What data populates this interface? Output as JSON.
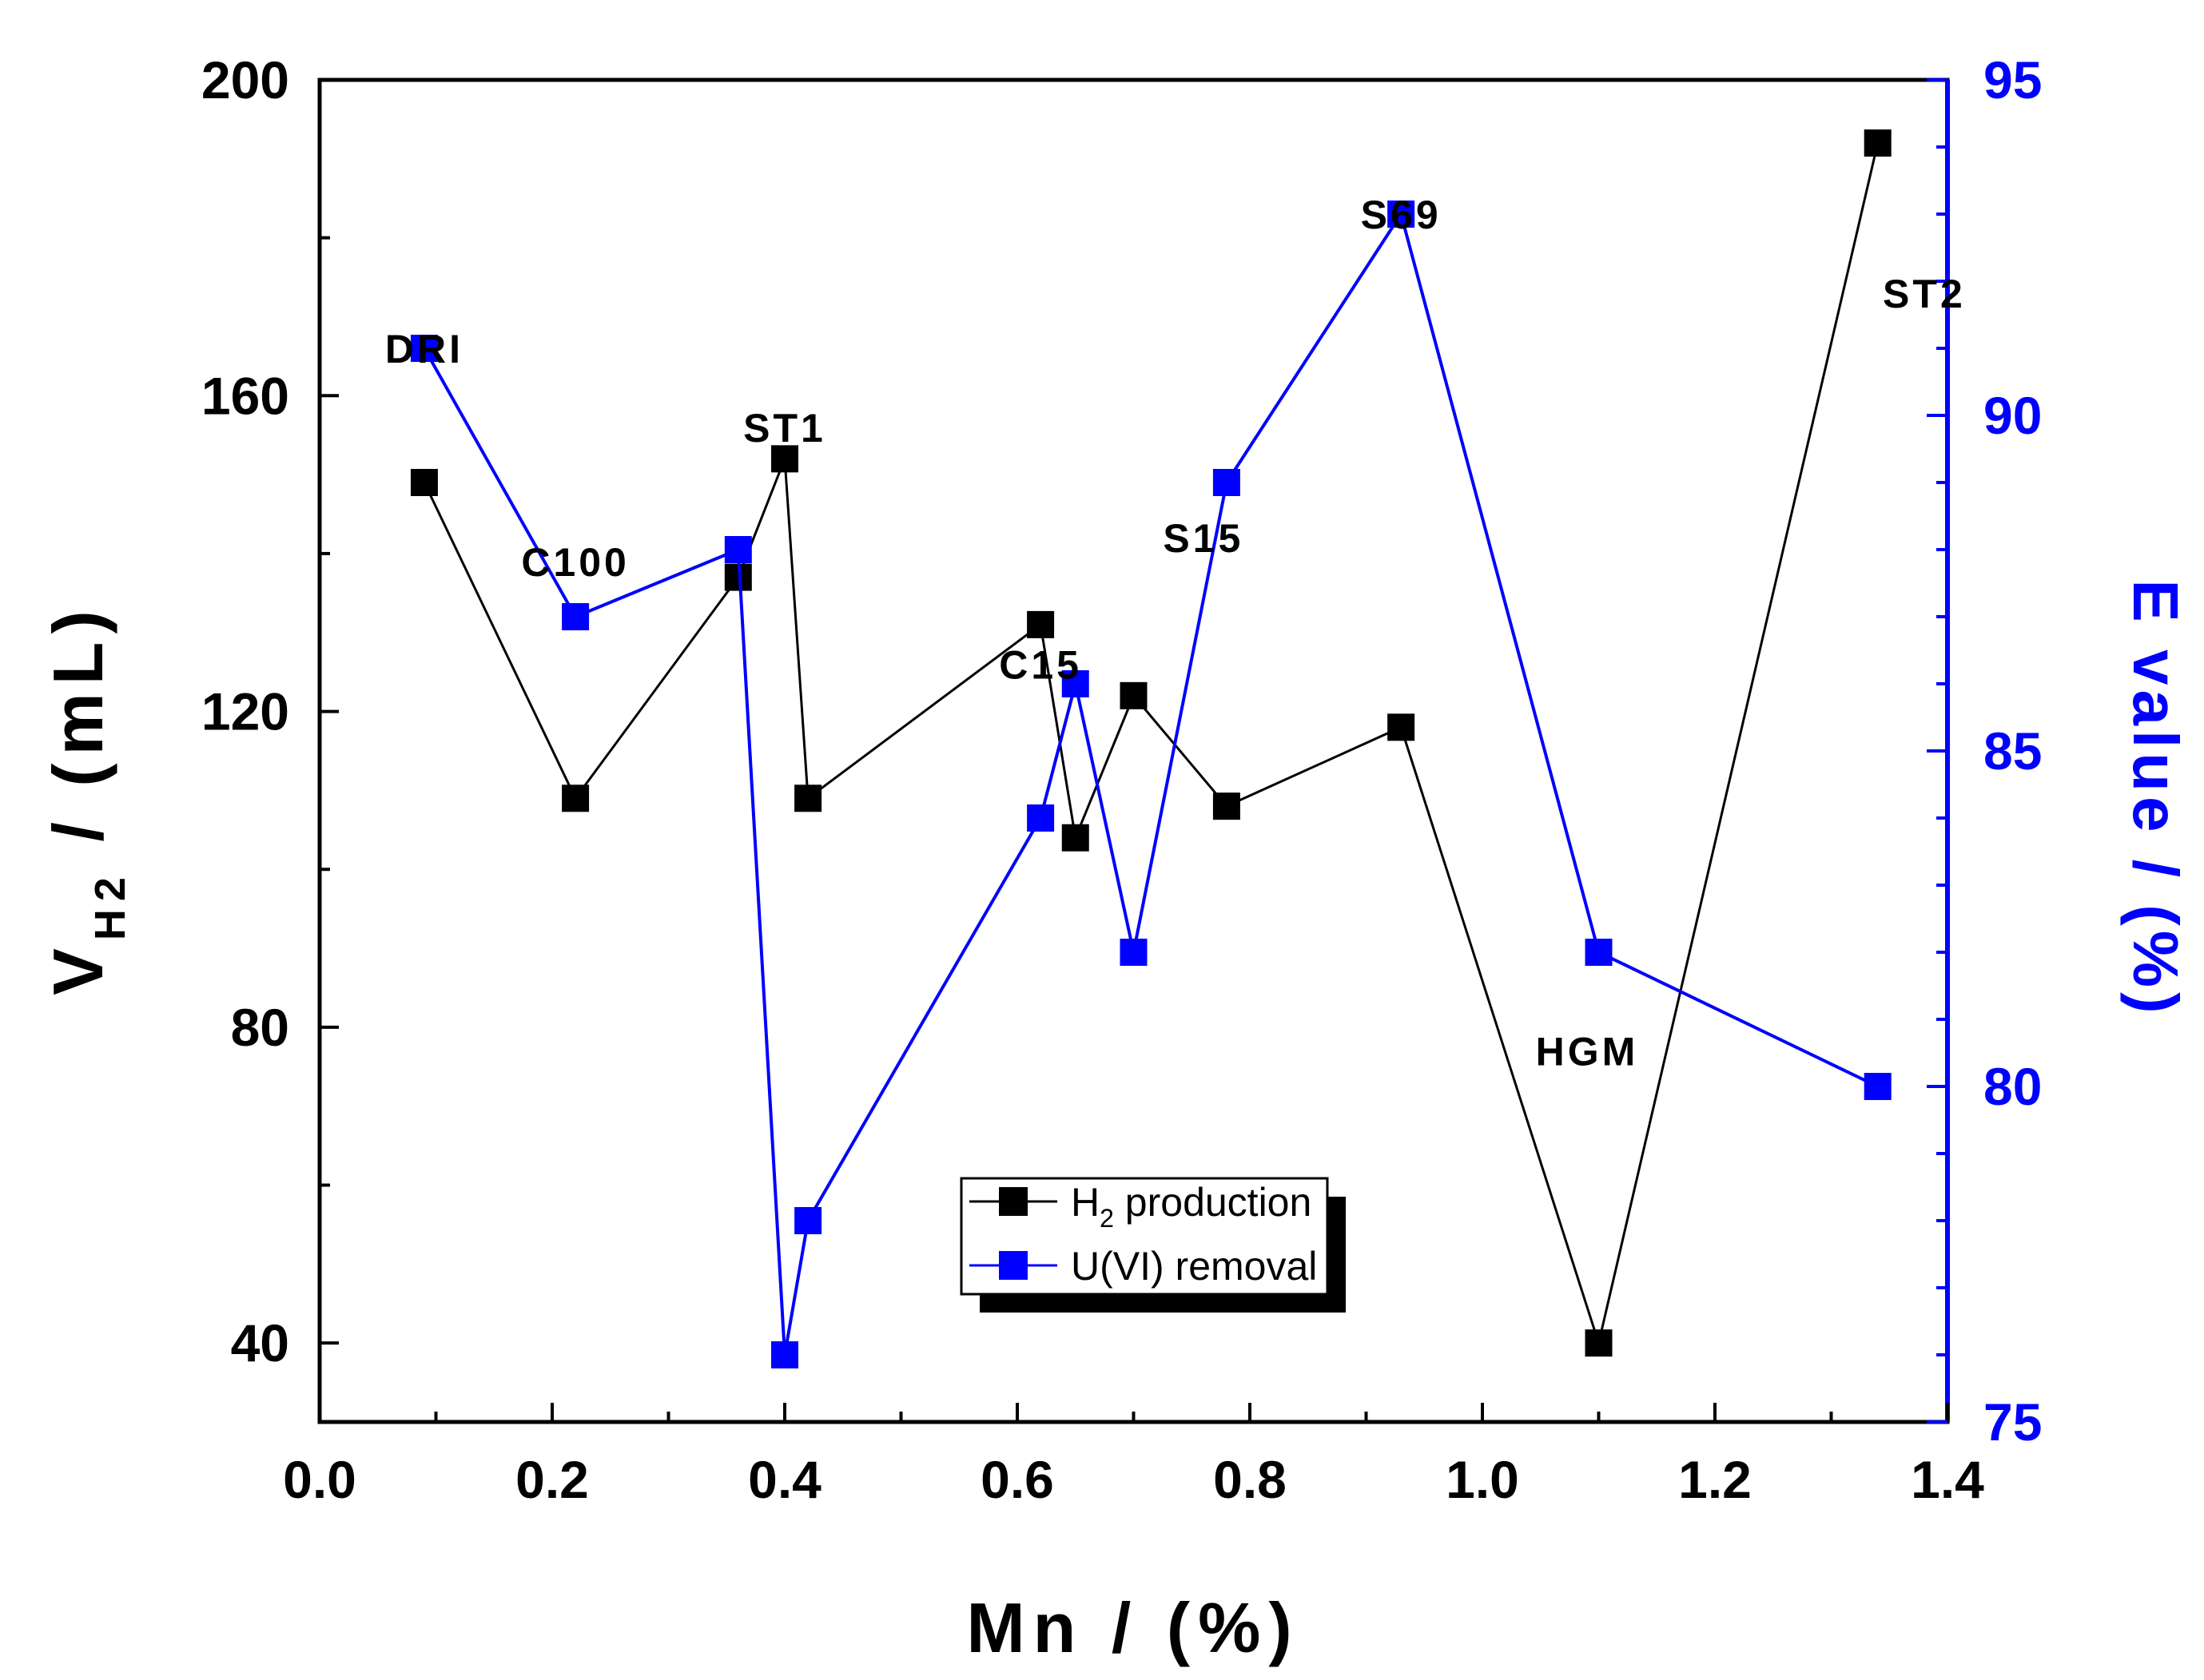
{
  "colors": {
    "left_axis": "#000000",
    "right_axis": "#0000ff",
    "h2_series": "#000000",
    "u_series": "#0000ff",
    "background": "#ffffff"
  },
  "chart_data": {
    "type": "line",
    "xlabel": "Mn / (%)",
    "ylabel_left": {
      "main": "V",
      "sub": "H2",
      "rest": " / (mL)"
    },
    "ylabel_right": "E value / (%)",
    "xlim": [
      0.0,
      1.4
    ],
    "ylim_left": [
      30,
      200
    ],
    "ylim_right": [
      75,
      95
    ],
    "x_ticks": [
      "0.0",
      "0.2",
      "0.4",
      "0.6",
      "0.8",
      "1.0",
      "1.2",
      "1.4"
    ],
    "y_left_ticks": [
      "40",
      "80",
      "120",
      "160",
      "200"
    ],
    "y_right_ticks": [
      "75",
      "80",
      "85",
      "90",
      "95"
    ],
    "grid": false,
    "legend_position": "lower-center",
    "legend": {
      "h2": {
        "main": "H",
        "sub": "2",
        "rest": " production"
      },
      "u": "U(VI) removal"
    },
    "series": [
      {
        "name": "H2 production",
        "axis": "left",
        "points": [
          {
            "x": 0.09,
            "y": 149
          },
          {
            "x": 0.22,
            "y": 109
          },
          {
            "x": 0.36,
            "y": 137
          },
          {
            "x": 0.4,
            "y": 152
          },
          {
            "x": 0.42,
            "y": 109
          },
          {
            "x": 0.62,
            "y": 131
          },
          {
            "x": 0.65,
            "y": 104
          },
          {
            "x": 0.7,
            "y": 122
          },
          {
            "x": 0.78,
            "y": 108
          },
          {
            "x": 0.93,
            "y": 118
          },
          {
            "x": 1.1,
            "y": 40
          },
          {
            "x": 1.34,
            "y": 192
          }
        ]
      },
      {
        "name": "U(VI) removal",
        "axis": "right",
        "points": [
          {
            "x": 0.09,
            "y": 91
          },
          {
            "x": 0.22,
            "y": 87
          },
          {
            "x": 0.36,
            "y": 88
          },
          {
            "x": 0.4,
            "y": 76
          },
          {
            "x": 0.42,
            "y": 78
          },
          {
            "x": 0.62,
            "y": 84
          },
          {
            "x": 0.65,
            "y": 86
          },
          {
            "x": 0.7,
            "y": 82
          },
          {
            "x": 0.78,
            "y": 89
          },
          {
            "x": 0.93,
            "y": 93
          },
          {
            "x": 1.1,
            "y": 82
          },
          {
            "x": 1.34,
            "y": 80
          }
        ]
      }
    ],
    "annotations": [
      {
        "text": "DRI",
        "x": 0.09,
        "y_left": 166
      },
      {
        "text": "C100",
        "x": 0.22,
        "y_left": 139
      },
      {
        "text": "ST1",
        "x": 0.4,
        "y_left": 156
      },
      {
        "text": "C15",
        "x": 0.62,
        "y_left": 126
      },
      {
        "text": "S15",
        "x": 0.76,
        "y_left": 142
      },
      {
        "text": "S69",
        "x": 0.93,
        "y_left": 183
      },
      {
        "text": "ST2",
        "x": 1.38,
        "y_left": 173
      },
      {
        "text": "HGM",
        "x": 1.09,
        "y_left": 77
      }
    ]
  }
}
